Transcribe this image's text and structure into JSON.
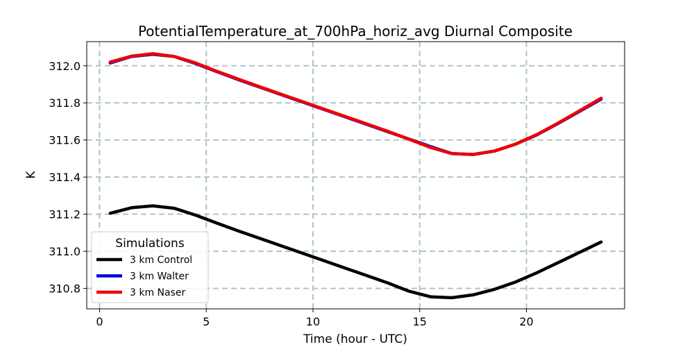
{
  "chart_data": {
    "type": "line",
    "title": "PotentialTemperature_at_700hPa_horiz_avg Diurnal Composite",
    "xlabel": "Time (hour - UTC)",
    "ylabel": "K",
    "xlim": [
      -0.6,
      24.6
    ],
    "ylim": [
      310.69,
      312.13
    ],
    "xticks": [
      0,
      5,
      10,
      15,
      20
    ],
    "yticks": [
      310.8,
      311.0,
      311.2,
      311.4,
      311.6,
      311.8,
      312.0
    ],
    "ytick_labels": [
      "310.8",
      "311.0",
      "311.2",
      "311.4",
      "311.6",
      "311.8",
      "312.0"
    ],
    "grid": true,
    "legend": {
      "title": "Simulations",
      "location": "lower-left"
    },
    "x": [
      0.5,
      1.5,
      2.5,
      3.5,
      4.5,
      5.5,
      6.5,
      7.5,
      8.5,
      9.5,
      10.5,
      11.5,
      12.5,
      13.5,
      14.5,
      15.5,
      16.5,
      17.5,
      18.5,
      19.5,
      20.5,
      21.5,
      22.5,
      23.5
    ],
    "series": [
      {
        "name": "3 km Control",
        "color": "#000000",
        "values": [
          311.205,
          311.235,
          311.245,
          311.232,
          311.195,
          311.152,
          311.11,
          311.07,
          311.03,
          310.99,
          310.95,
          310.91,
          310.87,
          310.83,
          310.785,
          310.755,
          310.75,
          310.765,
          310.795,
          310.835,
          310.885,
          310.94,
          310.995,
          311.05
        ]
      },
      {
        "name": "3 km Walter",
        "color": "#0000dd",
        "values": [
          312.015,
          312.05,
          312.062,
          312.05,
          312.012,
          311.968,
          311.925,
          311.885,
          311.845,
          311.805,
          311.765,
          311.725,
          311.685,
          311.645,
          311.605,
          311.565,
          311.527,
          311.522,
          311.54,
          311.578,
          311.628,
          311.69,
          311.755,
          311.82
        ]
      },
      {
        "name": "3 km Naser",
        "color": "#ee0000",
        "values": [
          312.02,
          312.052,
          312.065,
          312.05,
          312.015,
          311.97,
          311.928,
          311.887,
          311.847,
          311.807,
          311.767,
          311.727,
          311.687,
          311.647,
          311.604,
          311.56,
          311.527,
          311.522,
          311.54,
          311.578,
          311.63,
          311.692,
          311.758,
          311.825
        ]
      }
    ]
  }
}
